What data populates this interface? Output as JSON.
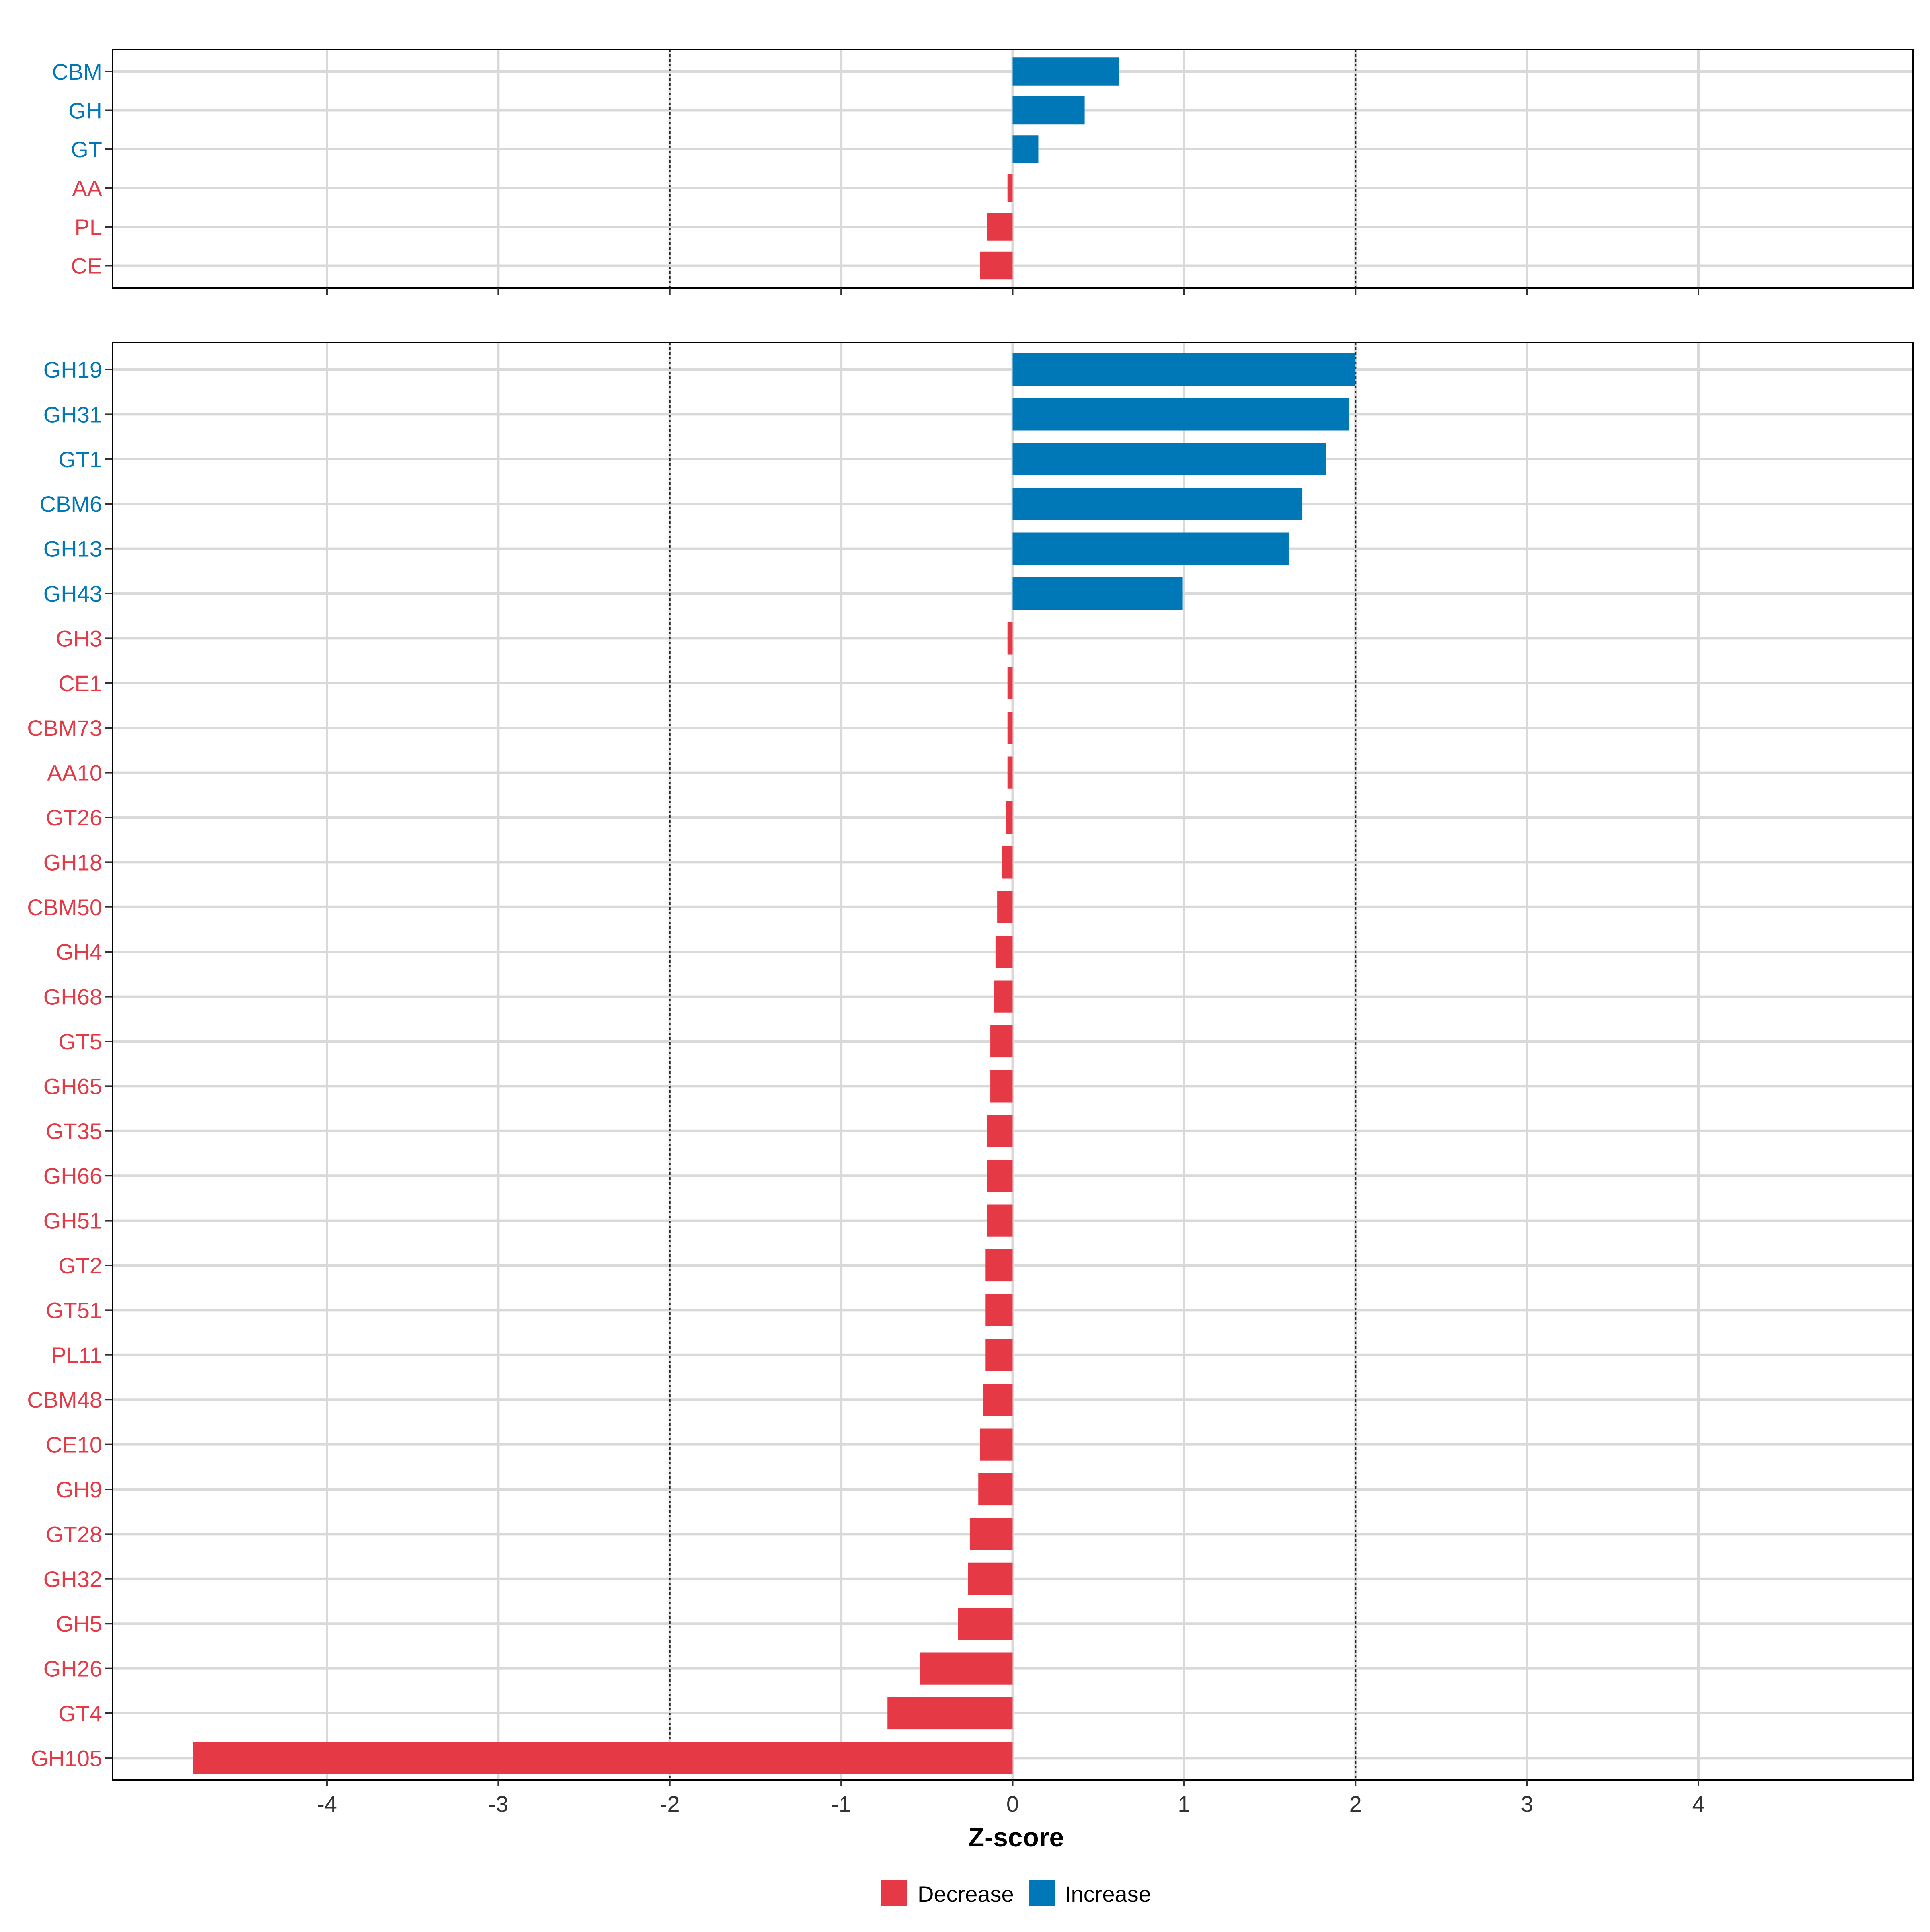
{
  "chart_data": [
    {
      "type": "bar",
      "orientation": "horizontal",
      "panel": "top",
      "categories": [
        "CBM",
        "GH",
        "GT",
        "AA",
        "PL",
        "CE"
      ],
      "values": [
        0.62,
        0.42,
        0.15,
        -0.03,
        -0.15,
        -0.19
      ],
      "groups": [
        "Increase",
        "Increase",
        "Increase",
        "Decrease",
        "Decrease",
        "Decrease"
      ],
      "xlim": [
        -5.25,
        5.25
      ],
      "reference_lines": [
        -2,
        2
      ],
      "grid": true
    },
    {
      "type": "bar",
      "orientation": "horizontal",
      "panel": "bottom",
      "categories": [
        "GH19",
        "GH31",
        "GT1",
        "CBM6",
        "GH13",
        "GH43",
        "GH3",
        "CE1",
        "CBM73",
        "AA10",
        "GT26",
        "GH18",
        "CBM50",
        "GH4",
        "GH68",
        "GT5",
        "GH65",
        "GT35",
        "GH66",
        "GH51",
        "GT2",
        "GT51",
        "PL11",
        "CBM48",
        "CE10",
        "GH9",
        "GT28",
        "GH32",
        "GH5",
        "GH26",
        "GT4",
        "GH105"
      ],
      "values": [
        2.0,
        1.96,
        1.83,
        1.69,
        1.61,
        0.99,
        -0.03,
        -0.03,
        -0.03,
        -0.03,
        -0.04,
        -0.06,
        -0.09,
        -0.1,
        -0.11,
        -0.13,
        -0.13,
        -0.15,
        -0.15,
        -0.15,
        -0.16,
        -0.16,
        -0.16,
        -0.17,
        -0.19,
        -0.2,
        -0.25,
        -0.26,
        -0.32,
        -0.54,
        -0.73,
        -4.78
      ],
      "groups": [
        "Increase",
        "Increase",
        "Increase",
        "Increase",
        "Increase",
        "Increase",
        "Decrease",
        "Decrease",
        "Decrease",
        "Decrease",
        "Decrease",
        "Decrease",
        "Decrease",
        "Decrease",
        "Decrease",
        "Decrease",
        "Decrease",
        "Decrease",
        "Decrease",
        "Decrease",
        "Decrease",
        "Decrease",
        "Decrease",
        "Decrease",
        "Decrease",
        "Decrease",
        "Decrease",
        "Decrease",
        "Decrease",
        "Decrease",
        "Decrease",
        "Decrease"
      ],
      "xlim": [
        -5.25,
        5.25
      ],
      "xticks": [
        -4,
        -3,
        -2,
        -1,
        0,
        1,
        2,
        3,
        4
      ],
      "xlabel": "Z-score",
      "reference_lines": [
        -2,
        2
      ],
      "grid": true
    }
  ],
  "legend": {
    "placement": "bottom",
    "items": [
      {
        "label": "Decrease",
        "color": "#e63946"
      },
      {
        "label": "Increase",
        "color": "#0077b6"
      }
    ]
  }
}
